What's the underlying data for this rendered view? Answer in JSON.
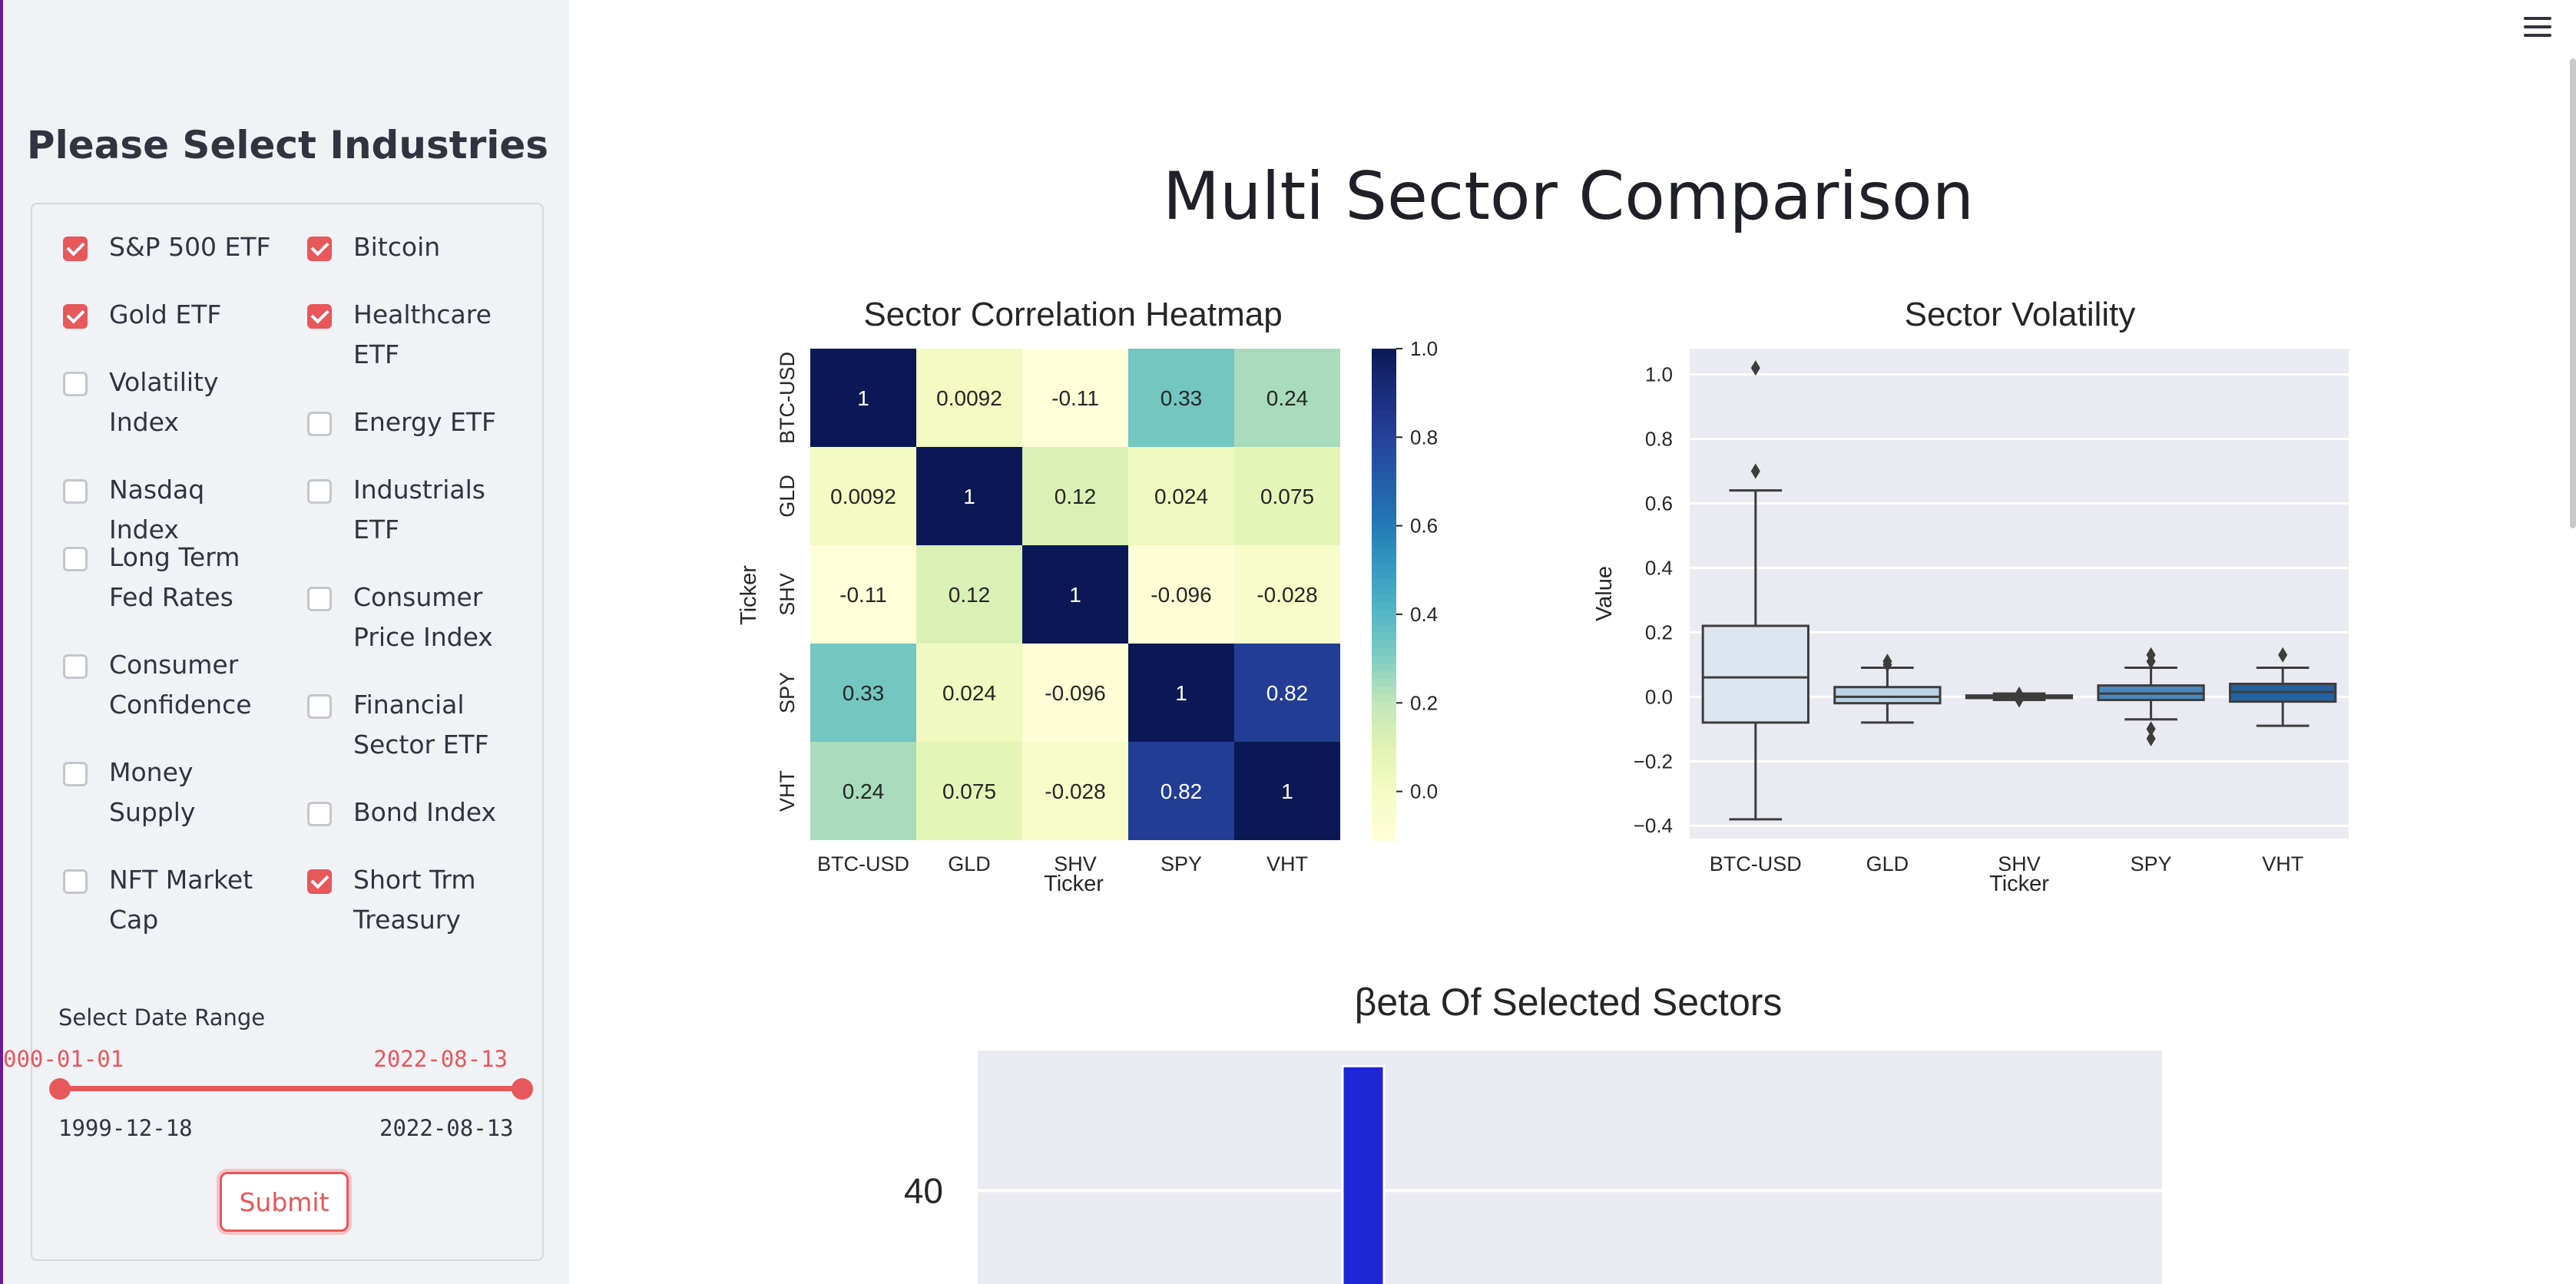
{
  "sidebar": {
    "title": "Please Select Industries",
    "checkboxes": [
      {
        "label": "S&P 500 ETF",
        "checked": true
      },
      {
        "label": "Bitcoin",
        "checked": true
      },
      {
        "label": "Gold ETF",
        "checked": true
      },
      {
        "label": "Healthcare ETF",
        "checked": true
      },
      {
        "label": "Volatility Index",
        "checked": false
      },
      {
        "label": "Energy ETF",
        "checked": false
      },
      {
        "label": "Nasdaq Index",
        "checked": false
      },
      {
        "label": "Industrials ETF",
        "checked": false
      },
      {
        "label": "Long Term Fed Rates",
        "checked": false
      },
      {
        "label": "Consumer Price Index",
        "checked": false
      },
      {
        "label": "Consumer Confidence",
        "checked": false
      },
      {
        "label": "Financial Sector ETF",
        "checked": false
      },
      {
        "label": "Money Supply",
        "checked": false
      },
      {
        "label": "Bond Index",
        "checked": false
      },
      {
        "label": "NFT Market Cap",
        "checked": false
      },
      {
        "label": "Short Trm Treasury",
        "checked": true
      }
    ],
    "date_range": {
      "label": "Select Date Range",
      "start_value": "000-01-01",
      "end_value": "2022-08-13",
      "min": "1999-12-18",
      "max": "2022-08-13"
    },
    "submit_label": "Submit"
  },
  "main": {
    "title": "Multi Sector Comparison"
  },
  "colors": {
    "accent": "#e8575a",
    "sidebar_bg": "#f0f2f6",
    "plot_bg": "#eaeaf2",
    "beta_bar": "#1f26d6"
  },
  "chart_data": [
    {
      "type": "heatmap",
      "title": "Sector Correlation Heatmap",
      "xlabel": "Ticker",
      "ylabel": "Ticker",
      "rows": [
        "BTC-USD",
        "GLD",
        "SHV",
        "SPY",
        "VHT"
      ],
      "cols": [
        "BTC-USD",
        "GLD",
        "SHV",
        "SPY",
        "VHT"
      ],
      "values": [
        [
          1,
          0.0092,
          -0.11,
          0.33,
          0.24
        ],
        [
          0.0092,
          1,
          0.12,
          0.024,
          0.075
        ],
        [
          -0.11,
          0.12,
          1,
          -0.096,
          -0.028
        ],
        [
          0.33,
          0.024,
          -0.096,
          1,
          0.82
        ],
        [
          0.24,
          0.075,
          -0.028,
          0.82,
          1
        ]
      ],
      "colorbar": {
        "min": -0.11,
        "max": 1.0,
        "ticks": [
          0.0,
          0.2,
          0.4,
          0.6,
          0.8,
          1.0
        ],
        "tick_labels": [
          "0.0",
          "0.2",
          "0.4",
          "0.6",
          "0.8",
          "1.0"
        ]
      }
    },
    {
      "type": "box",
      "title": "Sector Volatility",
      "xlabel": "Ticker",
      "ylabel": "Value",
      "categories": [
        "BTC-USD",
        "GLD",
        "SHV",
        "SPY",
        "VHT"
      ],
      "ylim": [
        -0.44,
        1.08
      ],
      "yticks": [
        -0.4,
        -0.2,
        0.0,
        0.2,
        0.4,
        0.6,
        0.8,
        1.0
      ],
      "ytick_labels": [
        "−0.4",
        "−0.2",
        "0.0",
        "0.2",
        "0.4",
        "0.6",
        "0.8",
        "1.0"
      ],
      "boxes": [
        {
          "min": -0.38,
          "q1": -0.08,
          "median": 0.06,
          "q3": 0.22,
          "max": 0.64,
          "outliers": [
            0.7,
            1.02
          ],
          "color": "#dde6f0"
        },
        {
          "min": -0.08,
          "q1": -0.02,
          "median": 0.0,
          "q3": 0.03,
          "max": 0.09,
          "outliers": [
            0.1,
            0.11
          ],
          "color": "#bcd3e6"
        },
        {
          "min": -0.01,
          "q1": -0.004,
          "median": 0.0,
          "q3": 0.004,
          "max": 0.01,
          "outliers": [
            -0.01,
            0.008
          ],
          "color": "#8fb6d6"
        },
        {
          "min": -0.07,
          "q1": -0.01,
          "median": 0.01,
          "q3": 0.035,
          "max": 0.09,
          "outliers": [
            -0.1,
            -0.13,
            0.11,
            0.13
          ],
          "color": "#4a89bf"
        },
        {
          "min": -0.09,
          "q1": -0.015,
          "median": 0.015,
          "q3": 0.04,
          "max": 0.09,
          "outliers": [
            0.13
          ],
          "color": "#2262a3"
        }
      ]
    },
    {
      "type": "bar",
      "title": "βeta Of Selected Sectors",
      "visible_ytick_labels": [
        "40"
      ],
      "yticks": [
        40
      ],
      "ylim_visible": [
        34,
        49
      ],
      "bars": [
        {
          "value": 48,
          "label": ""
        }
      ]
    }
  ]
}
